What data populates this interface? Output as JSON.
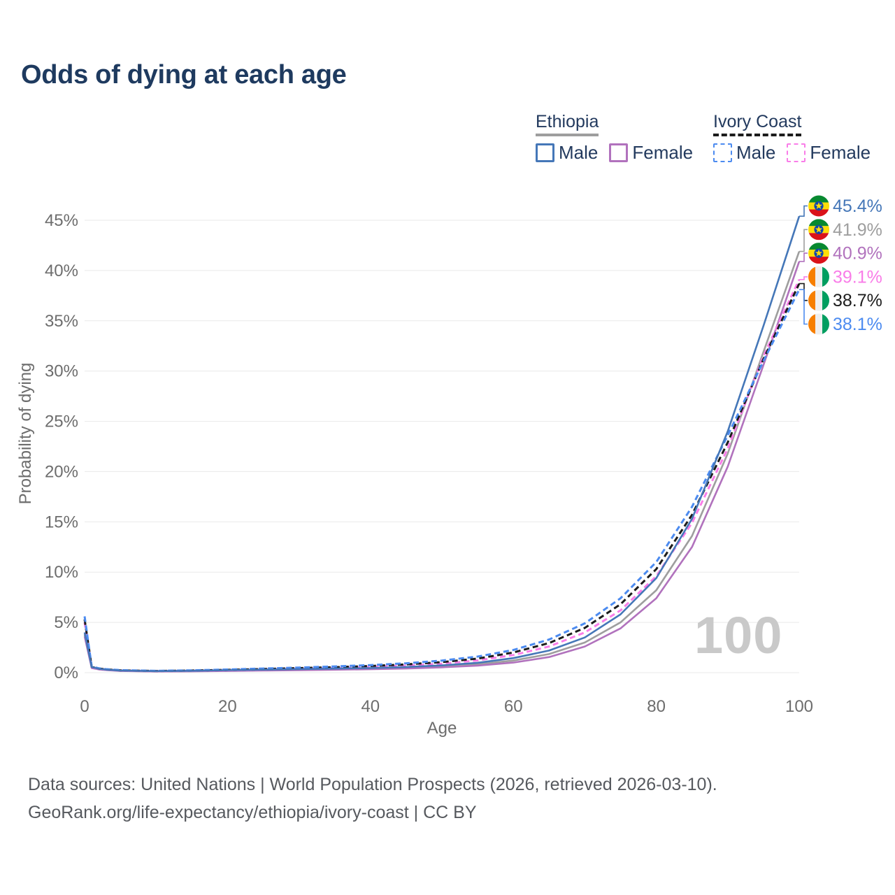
{
  "title": "Odds of dying at each age",
  "legend": {
    "groups": [
      {
        "name": "Ethiopia",
        "line_style": "solid",
        "underline_color": "#9e9e9e",
        "items": [
          {
            "label": "Male",
            "color": "#4577b8"
          },
          {
            "label": "Female",
            "color": "#b172bd"
          }
        ]
      },
      {
        "name": "Ivory Coast",
        "line_style": "dashed",
        "underline_color": "#1c1c1c",
        "items": [
          {
            "label": "Male",
            "color": "#4c8bf0"
          },
          {
            "label": "Female",
            "color": "#f97de8"
          }
        ]
      }
    ]
  },
  "watermark_age": "100",
  "footer": {
    "line1": "Data sources: United Nations | World Population Prospects (2026, retrieved 2026-03-10).",
    "line2": "GeoRank.org/life-expectancy/ethiopia/ivory-coast | CC BY"
  },
  "chart_data": {
    "type": "line",
    "title": "Odds of dying at each age",
    "xlabel": "Age",
    "ylabel": "Probability of dying",
    "xlim": [
      0,
      100
    ],
    "ylim": [
      0,
      45
    ],
    "xticks": [
      0,
      20,
      40,
      60,
      80,
      100
    ],
    "yticks": [
      0,
      5,
      10,
      15,
      20,
      25,
      30,
      35,
      40,
      45
    ],
    "ytick_format": "percent",
    "grid": "horizontal",
    "legend_position": "top-right",
    "x": [
      0,
      1,
      2,
      3,
      5,
      10,
      15,
      20,
      25,
      30,
      35,
      40,
      45,
      50,
      55,
      60,
      65,
      70,
      75,
      80,
      85,
      90,
      95,
      100
    ],
    "series": [
      {
        "id": "ethiopia-male",
        "name": "Ethiopia Male",
        "country": "ethiopia",
        "sex": "male",
        "color": "#4577b8",
        "dashed": false,
        "end_label": "45.4%",
        "end_value": 45.4,
        "values": [
          4.0,
          0.55,
          0.38,
          0.3,
          0.2,
          0.15,
          0.18,
          0.24,
          0.3,
          0.35,
          0.4,
          0.46,
          0.56,
          0.72,
          0.98,
          1.45,
          2.2,
          3.5,
          5.8,
          9.4,
          15.3,
          24.0,
          34.5,
          45.4
        ]
      },
      {
        "id": "ethiopia-all",
        "name": "Ethiopia",
        "country": "ethiopia",
        "sex": "all",
        "color": "#9e9e9e",
        "dashed": false,
        "end_label": "41.9%",
        "end_value": 41.9,
        "values": [
          3.8,
          0.5,
          0.35,
          0.28,
          0.18,
          0.13,
          0.15,
          0.2,
          0.25,
          0.3,
          0.34,
          0.4,
          0.48,
          0.62,
          0.83,
          1.2,
          1.85,
          3.0,
          5.0,
          8.2,
          13.6,
          21.8,
          31.9,
          41.9
        ]
      },
      {
        "id": "ethiopia-female",
        "name": "Ethiopia Female",
        "country": "ethiopia",
        "sex": "female",
        "color": "#b172bd",
        "dashed": false,
        "end_label": "40.9%",
        "end_value": 40.9,
        "values": [
          3.6,
          0.45,
          0.32,
          0.26,
          0.17,
          0.12,
          0.13,
          0.17,
          0.21,
          0.25,
          0.29,
          0.34,
          0.41,
          0.53,
          0.7,
          1.0,
          1.55,
          2.6,
          4.4,
          7.4,
          12.5,
          20.5,
          30.6,
          40.9
        ]
      },
      {
        "id": "ivory-coast-female",
        "name": "Ivory Coast Female",
        "country": "ivory-coast",
        "sex": "female",
        "color": "#f97de8",
        "dashed": true,
        "end_label": "39.1%",
        "end_value": 39.1,
        "values": [
          5.0,
          0.52,
          0.38,
          0.3,
          0.21,
          0.15,
          0.18,
          0.24,
          0.31,
          0.38,
          0.46,
          0.56,
          0.7,
          0.9,
          1.22,
          1.75,
          2.6,
          4.0,
          6.2,
          9.6,
          14.9,
          22.3,
          31.5,
          39.1
        ]
      },
      {
        "id": "ivory-coast-all",
        "name": "Ivory Coast",
        "country": "ivory-coast",
        "sex": "all",
        "color": "#1c1c1c",
        "dashed": true,
        "end_label": "38.7%",
        "end_value": 38.7,
        "values": [
          5.3,
          0.56,
          0.41,
          0.33,
          0.23,
          0.17,
          0.21,
          0.28,
          0.36,
          0.45,
          0.54,
          0.66,
          0.82,
          1.05,
          1.4,
          2.0,
          2.95,
          4.45,
          6.8,
          10.3,
          15.7,
          22.9,
          31.2,
          38.7
        ]
      },
      {
        "id": "ivory-coast-male",
        "name": "Ivory Coast Male",
        "country": "ivory-coast",
        "sex": "male",
        "color": "#4c8bf0",
        "dashed": true,
        "end_label": "38.1%",
        "end_value": 38.1,
        "values": [
          5.6,
          0.6,
          0.44,
          0.35,
          0.25,
          0.18,
          0.23,
          0.31,
          0.41,
          0.51,
          0.62,
          0.75,
          0.93,
          1.2,
          1.6,
          2.25,
          3.3,
          4.9,
          7.4,
          11.0,
          16.5,
          23.6,
          31.0,
          38.1
        ]
      }
    ]
  }
}
